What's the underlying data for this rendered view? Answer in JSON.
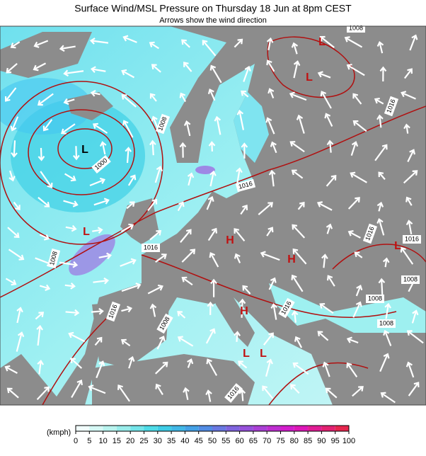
{
  "header": {
    "title": "Surface Wind/MSL Pressure on Thursday 18 Jun at 8pm CEST",
    "subtitle": "Arrows show the wind direction"
  },
  "map": {
    "isobar_labels": [
      "1008",
      "1016",
      "1008",
      "1000",
      "1016",
      "1008",
      "1016",
      "1016",
      "1016",
      "1008",
      "1016",
      "1008",
      "1016",
      "1008",
      "1008",
      "1016"
    ],
    "pressure_centers": [
      "L",
      "L",
      "L",
      "L",
      "L",
      "H",
      "H",
      "H",
      "L",
      "L"
    ]
  },
  "legend": {
    "unit": "(kmph)",
    "ticks": [
      0,
      5,
      10,
      15,
      20,
      25,
      30,
      35,
      40,
      45,
      50,
      55,
      60,
      65,
      70,
      75,
      80,
      85,
      90,
      95,
      100
    ]
  }
}
